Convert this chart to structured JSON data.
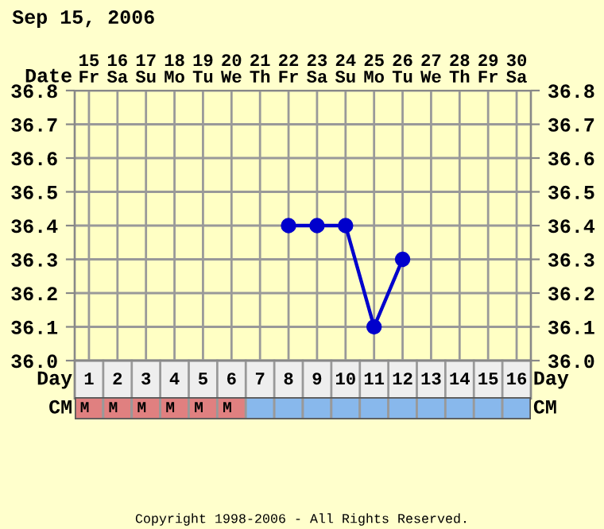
{
  "chart_data": [
    {
      "type": "line",
      "title": "Sep 15, 2006",
      "x2label": "Date",
      "xlabel": "Day",
      "color": "#0000cc",
      "x2lim": [
        14.5,
        30.5
      ],
      "x2ticks": [
        {
          "value": 15,
          "label": "15\nFr"
        },
        {
          "value": 16,
          "label": "16\nSa"
        },
        {
          "value": 17,
          "label": "17\nSu"
        },
        {
          "value": 18,
          "label": "18\nMo"
        },
        {
          "value": 19,
          "label": "19\nTu"
        },
        {
          "value": 20,
          "label": "20\nWe"
        },
        {
          "value": 21,
          "label": "21\nTh"
        },
        {
          "value": 22,
          "label": "22\nFr"
        },
        {
          "value": 23,
          "label": "23\nSa"
        },
        {
          "value": 24,
          "label": "24\nSu"
        },
        {
          "value": 25,
          "label": "25\nMo"
        },
        {
          "value": 26,
          "label": "26\nTu"
        },
        {
          "value": 27,
          "label": "27\nWe"
        },
        {
          "value": 28,
          "label": "28\nTh"
        },
        {
          "value": 29,
          "label": "29\nFr"
        },
        {
          "value": 30,
          "label": "30\nSa"
        }
      ],
      "categories": [
        "1",
        "2",
        "3",
        "4",
        "5",
        "6",
        "7",
        "8",
        "9",
        "10",
        "11",
        "12",
        "13",
        "14",
        "15",
        "16"
      ],
      "values": [
        null,
        null,
        null,
        null,
        null,
        null,
        null,
        36.4,
        36.4,
        36.4,
        36.1,
        36.3,
        null,
        null,
        null,
        null
      ],
      "ylim": [
        36.0,
        36.8
      ],
      "yticks": [
        {
          "value": 36.0,
          "label": "36.0"
        },
        {
          "value": 36.1,
          "label": "36.1"
        },
        {
          "value": 36.2,
          "label": "36.2"
        },
        {
          "value": 36.3,
          "label": "36.3"
        },
        {
          "value": 36.4,
          "label": "36.4"
        },
        {
          "value": 36.5,
          "label": "36.5"
        },
        {
          "value": 36.6,
          "label": "36.6"
        },
        {
          "value": 36.7,
          "label": "36.7"
        },
        {
          "value": 36.8,
          "label": "36.8"
        }
      ],
      "y2lim": [
        36.0,
        36.8
      ],
      "y2ticks": [
        {
          "value": 36.0,
          "label": "36.0"
        },
        {
          "value": 36.1,
          "label": "36.1"
        },
        {
          "value": 36.2,
          "label": "36.2"
        },
        {
          "value": 36.3,
          "label": "36.3"
        },
        {
          "value": 36.4,
          "label": "36.4"
        },
        {
          "value": 36.5,
          "label": "36.5"
        },
        {
          "value": 36.6,
          "label": "36.6"
        },
        {
          "value": 36.7,
          "label": "36.7"
        },
        {
          "value": 36.8,
          "label": "36.8"
        }
      ],
      "grid": true,
      "marker": "circle",
      "line_style": "solid"
    },
    {
      "type": "other",
      "ylabel": "CM",
      "y2label": "CM",
      "categories": [
        "M",
        "M",
        "M",
        "M",
        "M",
        "M",
        null,
        null,
        null,
        null,
        null,
        null,
        null,
        null,
        null,
        null
      ],
      "colors": [
        "#e08080",
        "#e08080",
        "#e08080",
        "#e08080",
        "#e08080",
        "#e08080",
        "#88b8ec",
        "#88b8ec",
        "#88b8ec",
        "#88b8ec",
        "#88b8ec",
        "#88b8ec",
        "#88b8ec",
        "#88b8ec",
        "#88b8ec",
        "#88b8ec"
      ],
      "annotations": [
        "Copyright 1998-2006 - All Rights Reserved."
      ]
    }
  ]
}
